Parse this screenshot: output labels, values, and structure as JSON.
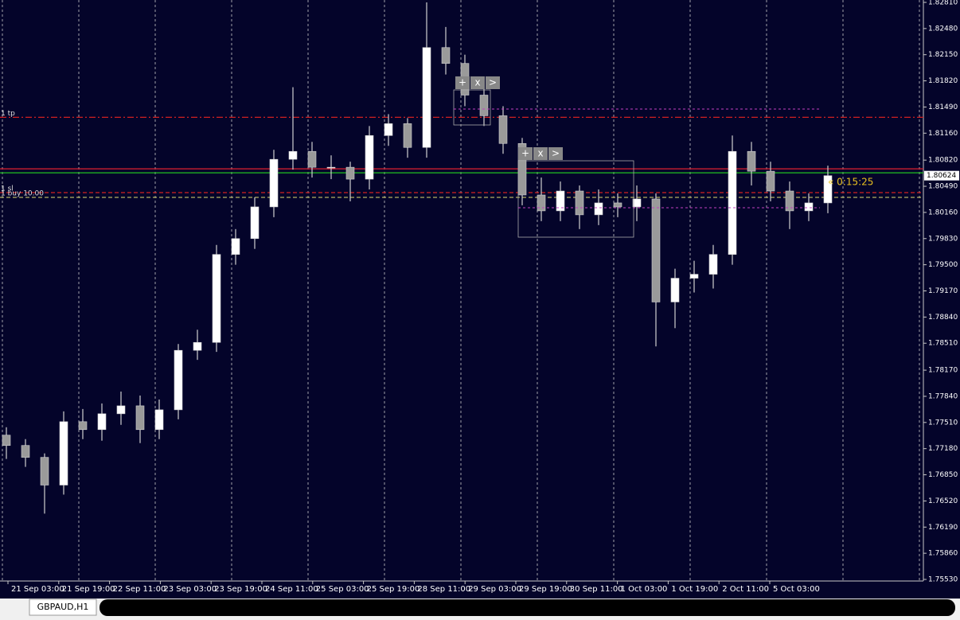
{
  "chart_data": {
    "type": "candlestick",
    "symbol_tab": "GBPAUD,H1",
    "countdown": "« 0:15:25",
    "ylim": [
      1.7551,
      1.8284
    ],
    "yticks": [
      {
        "value": 1.8281,
        "label": "1.82810"
      },
      {
        "value": 1.8248,
        "label": "1.82480"
      },
      {
        "value": 1.8215,
        "label": "1.82150"
      },
      {
        "value": 1.8182,
        "label": "1.81820"
      },
      {
        "value": 1.8149,
        "label": "1.81490"
      },
      {
        "value": 1.8116,
        "label": "1.81160"
      },
      {
        "value": 1.8082,
        "label": "1.80820"
      },
      {
        "value": 1.8049,
        "label": "1.80490"
      },
      {
        "value": 1.8016,
        "label": "1.80160"
      },
      {
        "value": 1.7983,
        "label": "1.79830"
      },
      {
        "value": 1.795,
        "label": "1.79500"
      },
      {
        "value": 1.7917,
        "label": "1.79170"
      },
      {
        "value": 1.7884,
        "label": "1.78840"
      },
      {
        "value": 1.7851,
        "label": "1.78510"
      },
      {
        "value": 1.7817,
        "label": "1.78170"
      },
      {
        "value": 1.7784,
        "label": "1.77840"
      },
      {
        "value": 1.7751,
        "label": "1.77510"
      },
      {
        "value": 1.7718,
        "label": "1.77180"
      },
      {
        "value": 1.7685,
        "label": "1.76850"
      },
      {
        "value": 1.7652,
        "label": "1.76520"
      },
      {
        "value": 1.7619,
        "label": "1.76190"
      },
      {
        "value": 1.7586,
        "label": "1.75860"
      },
      {
        "value": 1.7553,
        "label": "1.75530"
      }
    ],
    "x_labels": [
      "21 Sep 03:00",
      "21 Sep 19:00",
      "22 Sep 11:00",
      "23 Sep 03:00",
      "23 Sep 19:00",
      "24 Sep 11:00",
      "25 Sep 03:00",
      "25 Sep 19:00",
      "28 Sep 11:00",
      "29 Sep 03:00",
      "29 Sep 19:00",
      "30 Sep 11:00",
      "1 Oct 03:00",
      "1 Oct 19:00",
      "2 Oct 11:00",
      "5 Oct 03:00"
    ],
    "current_price": 1.80624,
    "levels": [
      {
        "name": "1 tp",
        "value": 1.8136,
        "color": "#d02020",
        "style": "dashdot"
      },
      {
        "value": 1.8071,
        "color": "#e02030",
        "style": "solid"
      },
      {
        "value": 1.8066,
        "color": "#20c020",
        "style": "solid"
      },
      {
        "name": "1 sl",
        "value": 1.8041,
        "color": "#d02020",
        "style": "dashed"
      },
      {
        "name": "1 buy 10.00",
        "value": 1.8035,
        "color": "#b0b060",
        "style": "dashed"
      }
    ],
    "tool_buttons": [
      "+",
      "x",
      ">"
    ],
    "ohlc": [
      [
        1.7735,
        1.7745,
        1.7705,
        1.7722
      ],
      [
        1.7722,
        1.773,
        1.7695,
        1.7707
      ],
      [
        1.7707,
        1.7712,
        1.7636,
        1.7672
      ],
      [
        1.7672,
        1.7765,
        1.766,
        1.7752
      ],
      [
        1.7752,
        1.7768,
        1.773,
        1.7742
      ],
      [
        1.7742,
        1.7775,
        1.7728,
        1.7762
      ],
      [
        1.7762,
        1.779,
        1.7748,
        1.7772
      ],
      [
        1.7772,
        1.7785,
        1.7725,
        1.7742
      ],
      [
        1.7742,
        1.778,
        1.773,
        1.7767
      ],
      [
        1.7767,
        1.785,
        1.7755,
        1.7842
      ],
      [
        1.7842,
        1.7868,
        1.783,
        1.7852
      ],
      [
        1.7852,
        1.7975,
        1.784,
        1.7963
      ],
      [
        1.7963,
        1.7995,
        1.795,
        1.7983
      ],
      [
        1.7983,
        1.8035,
        1.797,
        1.8023
      ],
      [
        1.8023,
        1.8095,
        1.801,
        1.8083
      ],
      [
        1.8083,
        1.8174,
        1.807,
        1.8093
      ],
      [
        1.8093,
        1.8105,
        1.806,
        1.8073
      ],
      [
        1.8073,
        1.8088,
        1.8058,
        1.8073
      ],
      [
        1.8073,
        1.808,
        1.803,
        1.8058
      ],
      [
        1.8058,
        1.8125,
        1.8045,
        1.8113
      ],
      [
        1.8113,
        1.814,
        1.81,
        1.8128
      ],
      [
        1.8128,
        1.8135,
        1.8085,
        1.8098
      ],
      [
        1.8098,
        1.8281,
        1.8085,
        1.8224
      ],
      [
        1.8224,
        1.825,
        1.819,
        1.8204
      ],
      [
        1.8204,
        1.8215,
        1.815,
        1.8164
      ],
      [
        1.8164,
        1.8175,
        1.8125,
        1.8138
      ],
      [
        1.8138,
        1.815,
        1.809,
        1.8103
      ],
      [
        1.8103,
        1.811,
        1.8025,
        1.8038
      ],
      [
        1.8038,
        1.806,
        1.8005,
        1.8018
      ],
      [
        1.8018,
        1.8055,
        1.8005,
        1.8043
      ],
      [
        1.8043,
        1.805,
        1.7995,
        1.8013
      ],
      [
        1.8013,
        1.8045,
        1.8,
        1.8028
      ],
      [
        1.8028,
        1.804,
        1.801,
        1.8023
      ],
      [
        1.8023,
        1.805,
        1.8005,
        1.8033
      ],
      [
        1.8033,
        1.804,
        1.7847,
        1.7903
      ],
      [
        1.7903,
        1.7945,
        1.787,
        1.7933
      ],
      [
        1.7933,
        1.7955,
        1.7915,
        1.7938
      ],
      [
        1.7938,
        1.7975,
        1.792,
        1.7963
      ],
      [
        1.7963,
        1.8113,
        1.795,
        1.8093
      ],
      [
        1.8093,
        1.8105,
        1.805,
        1.8068
      ],
      [
        1.8068,
        1.808,
        1.803,
        1.8043
      ],
      [
        1.8043,
        1.8055,
        1.7995,
        1.8018
      ],
      [
        1.8018,
        1.804,
        1.8005,
        1.8028
      ],
      [
        1.8028,
        1.8075,
        1.8015,
        1.80624
      ]
    ]
  }
}
